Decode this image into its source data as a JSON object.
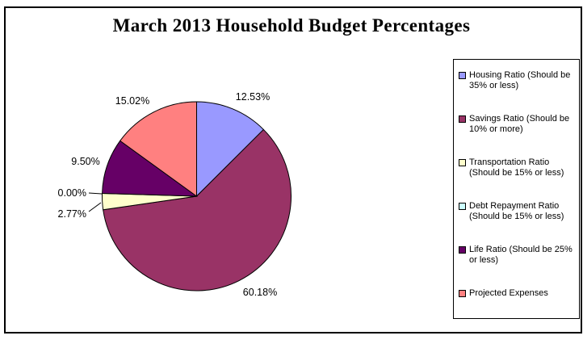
{
  "chart_data": {
    "type": "pie",
    "title": "March 2013 Household Budget Percentages",
    "legend_position": "right",
    "start_angle_deg": 0,
    "direction": "clockwise",
    "slices": [
      {
        "label": "Housing Ratio (Should be 35% or less)",
        "value": 12.53,
        "display": "12.53%",
        "color": "#9999FF"
      },
      {
        "label": "Savings Ratio (Should be 10% or more)",
        "value": 60.18,
        "display": "60.18%",
        "color": "#993366"
      },
      {
        "label": "Transportation Ratio (Should be 15% or less)",
        "value": 2.77,
        "display": "2.77%",
        "color": "#FFFFCC"
      },
      {
        "label": "Debt Repayment Ratio (Should be 15% or less)",
        "value": 0.0,
        "display": "0.00%",
        "color": "#CCFFFF"
      },
      {
        "label": "Life Ratio (Should be 25% or less)",
        "value": 9.5,
        "display": "9.50%",
        "color": "#660066"
      },
      {
        "label": "Projected Expenses",
        "value": 15.02,
        "display": "15.02%",
        "color": "#FF8080"
      }
    ]
  }
}
